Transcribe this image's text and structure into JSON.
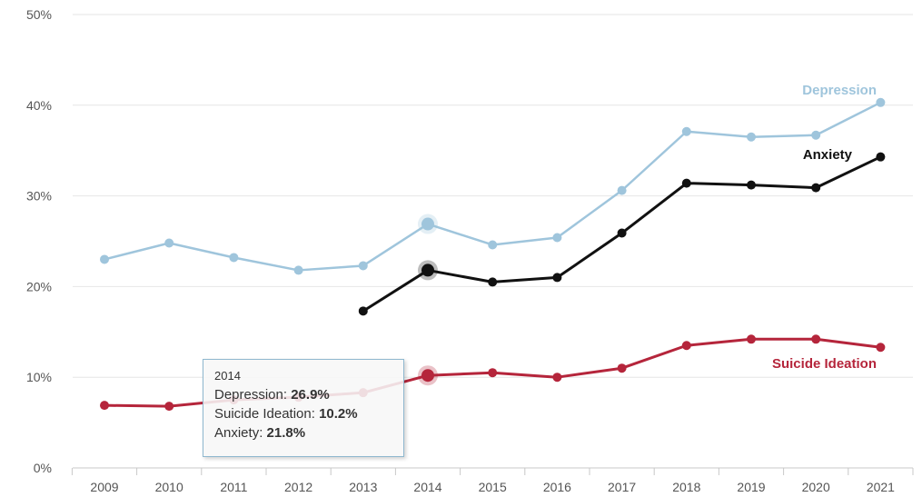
{
  "chart_data": {
    "type": "line",
    "x": [
      2009,
      2010,
      2011,
      2012,
      2013,
      2014,
      2015,
      2016,
      2017,
      2018,
      2019,
      2020,
      2021
    ],
    "ylim": [
      0,
      50
    ],
    "y_ticks": [
      "0%",
      "10%",
      "20%",
      "30%",
      "40%",
      "50%"
    ],
    "x_ticks": [
      "2009",
      "2010",
      "2011",
      "2012",
      "2013",
      "2014",
      "2015",
      "2016",
      "2017",
      "2018",
      "2019",
      "2020",
      "2021"
    ],
    "grid": "horizontal",
    "series": [
      {
        "key": "depression",
        "name": "Depression",
        "color": "#9fc5dc",
        "values": [
          23.0,
          24.8,
          23.2,
          21.8,
          22.3,
          26.9,
          24.6,
          25.4,
          30.6,
          37.1,
          36.5,
          36.7,
          40.3
        ]
      },
      {
        "key": "anxiety",
        "name": "Anxiety",
        "color": "#111111",
        "values": [
          null,
          null,
          null,
          null,
          17.3,
          21.8,
          20.5,
          21.0,
          25.9,
          31.4,
          31.2,
          30.9,
          34.3
        ]
      },
      {
        "key": "suicide",
        "name": "Suicide Ideation",
        "color": "#b5253b",
        "values": [
          6.9,
          6.8,
          7.5,
          7.8,
          8.3,
          10.2,
          10.5,
          10.0,
          11.0,
          13.5,
          14.2,
          14.2,
          13.3
        ]
      }
    ],
    "highlight_year": 2014
  },
  "tooltip": {
    "year": "2014",
    "rows": [
      {
        "label": "Depression: ",
        "value": "26.9%"
      },
      {
        "label": "Suicide Ideation: ",
        "value": "10.2%"
      },
      {
        "label": "Anxiety: ",
        "value": "21.8%"
      }
    ]
  }
}
